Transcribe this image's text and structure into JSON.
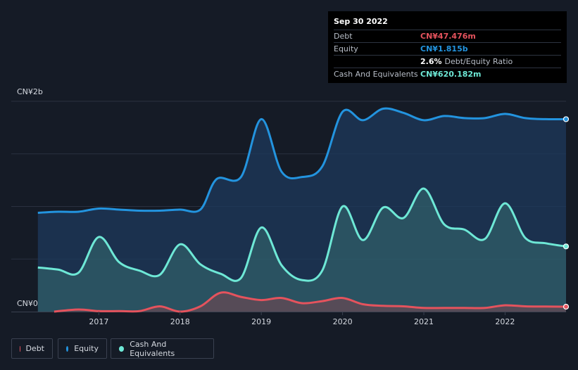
{
  "tooltip": {
    "date": "Sep 30 2022",
    "debt_label": "Debt",
    "debt_value": "CN¥47.476m",
    "equity_label": "Equity",
    "equity_value": "CN¥1.815b",
    "ratio_value": "2.6%",
    "ratio_label": "Debt/Equity Ratio",
    "cash_label": "Cash And Equivalents",
    "cash_value": "CN¥620.182m"
  },
  "legend": [
    {
      "name": "Debt",
      "color": "#e5535d"
    },
    {
      "name": "Equity",
      "color": "#2394df"
    },
    {
      "name": "Cash And Equivalents",
      "color": "#6ee8d6"
    }
  ],
  "chart_data": {
    "type": "area",
    "y_unit": "CN¥ billions",
    "ylim": [
      0,
      2.0
    ],
    "y_tick_labels": [
      {
        "value": 2.0,
        "label": "CN¥2b"
      },
      {
        "value": 0,
        "label": "CN¥0"
      }
    ],
    "xlim": [
      2016.2,
      2022.75
    ],
    "x_tick_labels": [
      "2017",
      "2018",
      "2019",
      "2020",
      "2021",
      "2022"
    ],
    "x_tick_values": [
      2017,
      2018,
      2019,
      2020,
      2021,
      2022
    ],
    "grid": true,
    "legend_position": "bottom-left",
    "series": [
      {
        "name": "Equity",
        "color": "#2394df",
        "x": [
          2016.25,
          2016.5,
          2016.75,
          2017.0,
          2017.25,
          2017.5,
          2017.75,
          2018.0,
          2018.25,
          2018.45,
          2018.75,
          2019.0,
          2019.25,
          2019.5,
          2019.75,
          2020.0,
          2020.25,
          2020.5,
          2020.75,
          2021.0,
          2021.25,
          2021.5,
          2021.75,
          2022.0,
          2022.25,
          2022.5,
          2022.75
        ],
        "values": [
          0.94,
          0.95,
          0.95,
          0.98,
          0.97,
          0.96,
          0.96,
          0.97,
          0.97,
          1.26,
          1.28,
          1.83,
          1.33,
          1.28,
          1.38,
          1.9,
          1.82,
          1.93,
          1.89,
          1.82,
          1.86,
          1.84,
          1.84,
          1.88,
          1.84,
          1.83,
          1.83
        ]
      },
      {
        "name": "Cash And Equivalents",
        "color": "#6ee8d6",
        "x": [
          2016.25,
          2016.5,
          2016.75,
          2017.0,
          2017.25,
          2017.5,
          2017.75,
          2018.0,
          2018.25,
          2018.5,
          2018.75,
          2019.0,
          2019.25,
          2019.5,
          2019.75,
          2020.0,
          2020.25,
          2020.5,
          2020.75,
          2021.0,
          2021.25,
          2021.5,
          2021.75,
          2022.0,
          2022.25,
          2022.5,
          2022.75
        ],
        "values": [
          0.42,
          0.4,
          0.37,
          0.71,
          0.47,
          0.39,
          0.35,
          0.64,
          0.45,
          0.36,
          0.32,
          0.8,
          0.44,
          0.3,
          0.39,
          1.0,
          0.68,
          0.99,
          0.89,
          1.17,
          0.83,
          0.78,
          0.69,
          1.03,
          0.7,
          0.65,
          0.62
        ]
      },
      {
        "name": "Debt",
        "color": "#e5535d",
        "x": [
          2016.45,
          2016.75,
          2017.0,
          2017.25,
          2017.5,
          2017.75,
          2018.0,
          2018.25,
          2018.5,
          2018.75,
          2019.0,
          2019.25,
          2019.5,
          2019.75,
          2020.0,
          2020.25,
          2020.5,
          2020.75,
          2021.0,
          2021.25,
          2021.5,
          2021.75,
          2022.0,
          2022.25,
          2022.5,
          2022.75
        ],
        "values": [
          0.0,
          0.02,
          0.005,
          0.005,
          0.005,
          0.05,
          0.0,
          0.05,
          0.18,
          0.14,
          0.11,
          0.13,
          0.08,
          0.1,
          0.13,
          0.07,
          0.055,
          0.05,
          0.035,
          0.035,
          0.035,
          0.035,
          0.06,
          0.05,
          0.048,
          0.047
        ]
      }
    ]
  }
}
